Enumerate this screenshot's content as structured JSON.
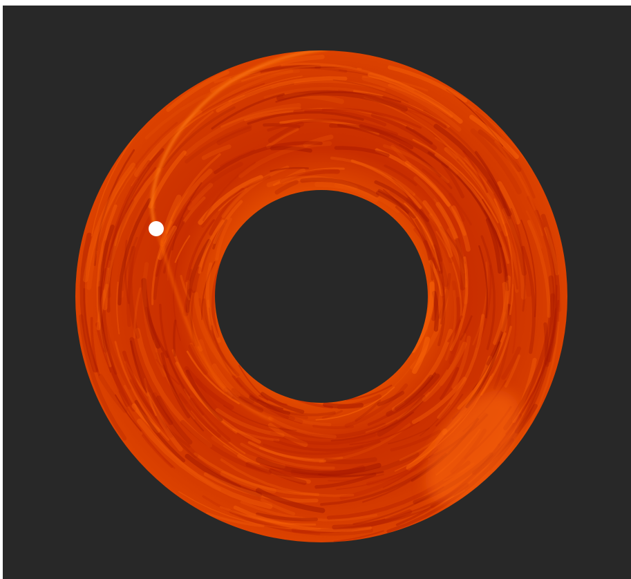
{
  "colors": {
    "background": "#282828",
    "page": "#ffffff",
    "disk_base": "#d63a00",
    "disk_dark": "#a81800",
    "disk_bright": "#ff6a08",
    "planet": "#ffffff"
  },
  "objects": {
    "disk": "turbulent-ring",
    "planet": "white-dot",
    "spiral_wake": "bright-arm"
  }
}
